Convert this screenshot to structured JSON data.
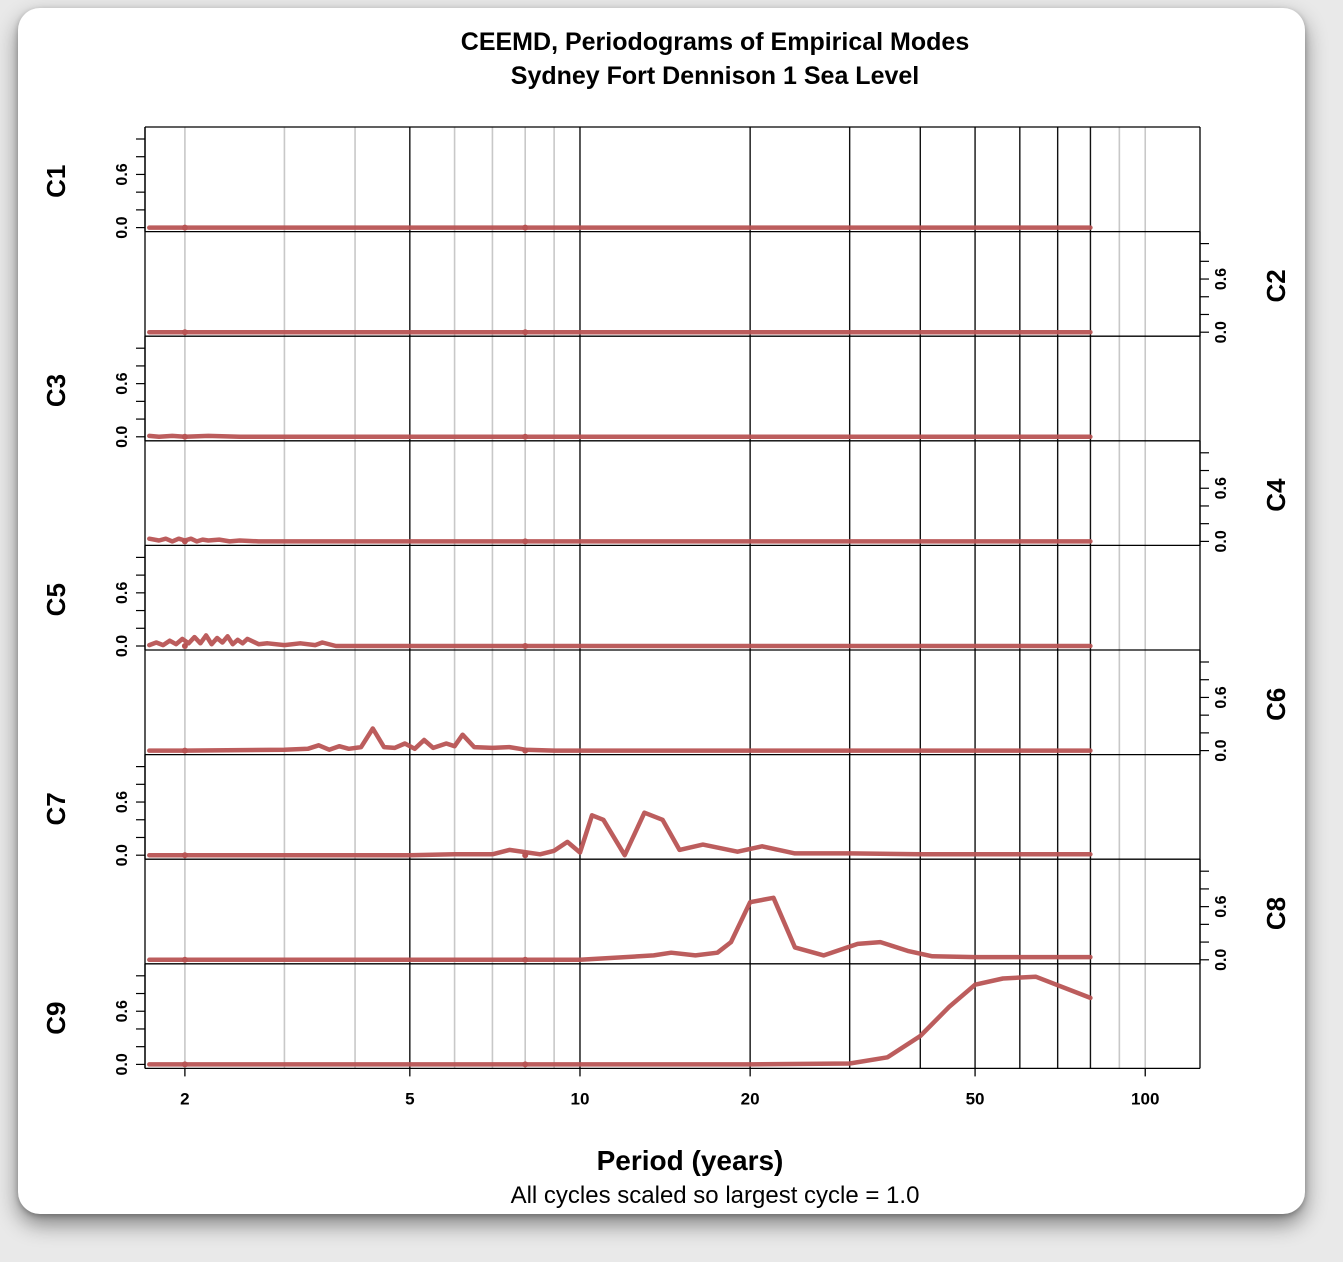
{
  "chart_data": {
    "type": "line",
    "title": "CEEMD, Periodograms of Empirical Modes",
    "subtitle": "Sydney Fort Dennison 1 Sea Level",
    "xlabel": "Period (years)",
    "note": "All cycles scaled so largest cycle = 1.0",
    "xscale": "log",
    "xlim": [
      1.7,
      125
    ],
    "x_ticks": [
      2,
      5,
      10,
      20,
      50,
      100
    ],
    "x_tick_labels": [
      "2",
      "5",
      "10",
      "20",
      "50",
      "100"
    ],
    "ylim": [
      0,
      1
    ],
    "y_ticks": [
      0.0,
      0.6
    ],
    "y_tick_labels": [
      "0.0",
      "0.6"
    ],
    "grid": "log decade gridlines",
    "line_color": "#b85454",
    "series": [
      {
        "name": "C1",
        "x": [
          1.73,
          2.0,
          5.0,
          10.0,
          20.0,
          40.0,
          80.0
        ],
        "values": [
          0.0,
          0.0,
          0.0,
          0.0,
          0.0,
          0.0,
          0.0
        ]
      },
      {
        "name": "C2",
        "x": [
          1.73,
          2.0,
          5.0,
          10.0,
          20.0,
          40.0,
          80.0
        ],
        "values": [
          0.0,
          0.0,
          0.0,
          0.0,
          0.0,
          0.0,
          0.0
        ]
      },
      {
        "name": "C3",
        "x": [
          1.73,
          1.8,
          1.9,
          2.0,
          2.2,
          2.5,
          3.0,
          5.0,
          10.0,
          40.0,
          80.0
        ],
        "values": [
          0.01,
          0.0,
          0.01,
          0.0,
          0.01,
          0.0,
          0.0,
          0.0,
          0.0,
          0.0,
          0.0
        ]
      },
      {
        "name": "C4",
        "x": [
          1.73,
          1.8,
          1.85,
          1.9,
          1.95,
          2.0,
          2.05,
          2.1,
          2.15,
          2.2,
          2.3,
          2.4,
          2.5,
          2.7,
          3.0,
          5.0,
          10.0,
          40.0,
          80.0
        ],
        "values": [
          0.03,
          0.01,
          0.03,
          0.0,
          0.03,
          0.01,
          0.03,
          0.0,
          0.02,
          0.01,
          0.02,
          0.0,
          0.01,
          0.0,
          0.0,
          0.0,
          0.0,
          0.0,
          0.0
        ]
      },
      {
        "name": "C5",
        "x": [
          1.73,
          1.78,
          1.83,
          1.88,
          1.93,
          1.98,
          2.03,
          2.08,
          2.13,
          2.18,
          2.23,
          2.28,
          2.33,
          2.38,
          2.43,
          2.48,
          2.53,
          2.58,
          2.7,
          2.8,
          3.0,
          3.2,
          3.4,
          3.5,
          3.7,
          4.0,
          5.0,
          10.0,
          40.0,
          80.0
        ],
        "values": [
          0.01,
          0.04,
          0.01,
          0.06,
          0.02,
          0.08,
          0.03,
          0.1,
          0.03,
          0.12,
          0.02,
          0.09,
          0.04,
          0.11,
          0.02,
          0.07,
          0.03,
          0.08,
          0.02,
          0.03,
          0.01,
          0.03,
          0.01,
          0.04,
          0.0,
          0.0,
          0.0,
          0.0,
          0.0,
          0.0
        ]
      },
      {
        "name": "C6",
        "x": [
          1.73,
          2.0,
          3.0,
          3.3,
          3.45,
          3.6,
          3.75,
          3.9,
          4.1,
          4.3,
          4.5,
          4.7,
          4.9,
          5.1,
          5.3,
          5.5,
          5.8,
          6.0,
          6.2,
          6.5,
          7.0,
          7.5,
          8.0,
          9.0,
          10.0,
          20.0,
          40.0,
          80.0
        ],
        "values": [
          0.0,
          0.0,
          0.01,
          0.02,
          0.06,
          0.01,
          0.05,
          0.02,
          0.04,
          0.25,
          0.04,
          0.03,
          0.08,
          0.02,
          0.12,
          0.03,
          0.08,
          0.05,
          0.18,
          0.04,
          0.03,
          0.04,
          0.01,
          0.0,
          0.0,
          0.0,
          0.0,
          0.0
        ]
      },
      {
        "name": "C7",
        "x": [
          1.73,
          2.0,
          5.0,
          6.0,
          7.0,
          7.5,
          8.5,
          9.0,
          9.5,
          10.0,
          10.5,
          11.0,
          12.0,
          13.0,
          14.0,
          15.0,
          16.5,
          19.0,
          21.0,
          24.0,
          30.0,
          40.0,
          80.0
        ],
        "values": [
          0.0,
          0.0,
          0.0,
          0.01,
          0.01,
          0.06,
          0.01,
          0.05,
          0.15,
          0.03,
          0.45,
          0.4,
          0.0,
          0.48,
          0.4,
          0.06,
          0.12,
          0.04,
          0.1,
          0.02,
          0.02,
          0.01,
          0.01
        ]
      },
      {
        "name": "C8",
        "x": [
          1.73,
          2.0,
          5.0,
          10.0,
          13.5,
          14.5,
          16.0,
          17.5,
          18.5,
          20.0,
          22.0,
          24.0,
          27.0,
          31.0,
          34.0,
          38.0,
          42.0,
          50.0,
          80.0
        ],
        "values": [
          0.0,
          0.0,
          0.0,
          0.0,
          0.05,
          0.08,
          0.05,
          0.08,
          0.2,
          0.65,
          0.7,
          0.14,
          0.05,
          0.18,
          0.2,
          0.1,
          0.04,
          0.03,
          0.03
        ]
      },
      {
        "name": "C9",
        "x": [
          1.73,
          2.0,
          5.0,
          10.0,
          15.0,
          20.0,
          30.0,
          35.0,
          40.0,
          45.0,
          50.0,
          56.0,
          64.0,
          80.0
        ],
        "values": [
          0.0,
          0.0,
          0.0,
          0.0,
          0.0,
          0.0,
          0.01,
          0.08,
          0.32,
          0.65,
          0.9,
          0.97,
          0.99,
          0.75
        ]
      }
    ]
  }
}
